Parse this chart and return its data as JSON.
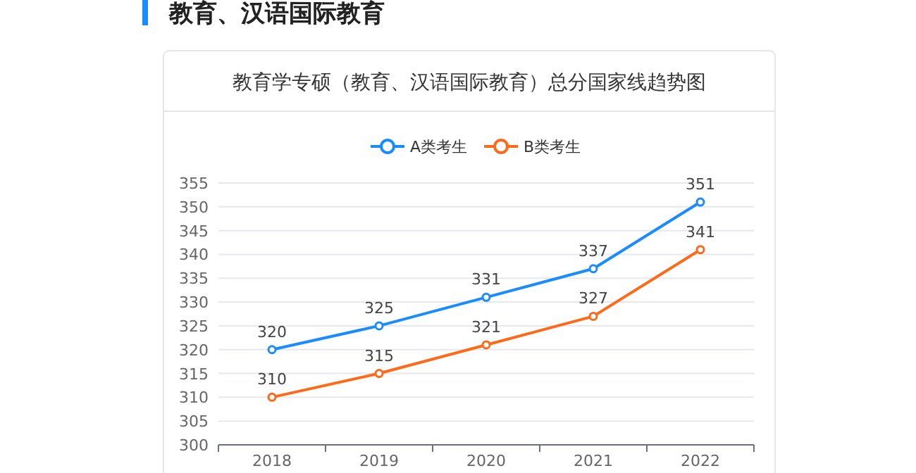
{
  "chart_data": {
    "type": "line",
    "title": "教育学专硕（教育、汉语国际教育）总分国家线趋势图",
    "annotations": [
      "教育、汉语国际教育"
    ],
    "categories": [
      "2018",
      "2019",
      "2020",
      "2021",
      "2022"
    ],
    "series": [
      {
        "name": "A类考生",
        "color": "#1a8cff",
        "values": [
          320,
          325,
          331,
          337,
          351
        ]
      },
      {
        "name": "B类考生",
        "color": "#ff6a1a",
        "values": [
          310,
          315,
          321,
          327,
          341
        ]
      }
    ],
    "ylim": [
      300,
      355
    ],
    "yticks": [
      300,
      305,
      310,
      315,
      320,
      325,
      330,
      335,
      340,
      345,
      350,
      355
    ],
    "grid": "y",
    "legend": "top",
    "marker": "circle",
    "line_style": "solid",
    "data_labels": true
  }
}
